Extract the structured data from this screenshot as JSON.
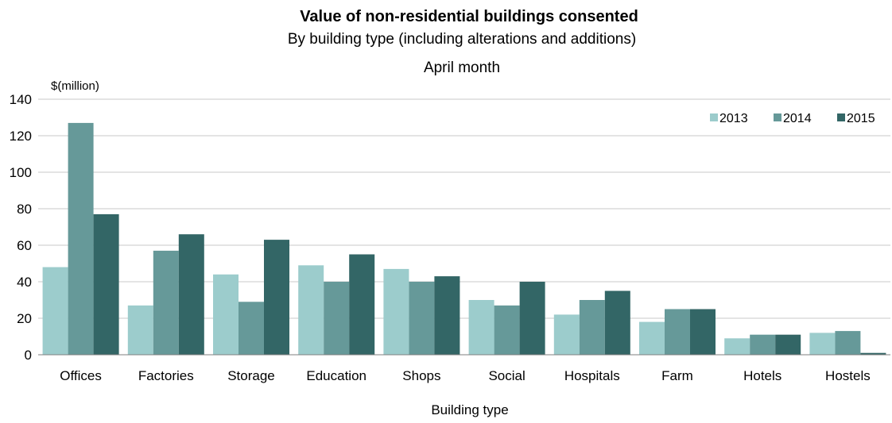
{
  "chart_data": {
    "type": "bar",
    "title": "Value of non-residential buildings consented",
    "subtitle": "By building type (including alterations and additions)",
    "subtitle2": "April month",
    "ylabel": "$(million)",
    "xlabel": "Building type",
    "ylim": [
      0,
      140
    ],
    "yticks": [
      0,
      20,
      40,
      60,
      80,
      100,
      120,
      140
    ],
    "grid": true,
    "legend_position": "top-right",
    "categories": [
      "Offices",
      "Factories",
      "Storage",
      "Education",
      "Shops",
      "Social",
      "Hospitals",
      "Farm",
      "Hotels",
      "Hostels"
    ],
    "series": [
      {
        "name": "2013",
        "color": "#9ccccc",
        "values": [
          48,
          27,
          44,
          49,
          47,
          30,
          22,
          18,
          9,
          12
        ]
      },
      {
        "name": "2014",
        "color": "#669999",
        "values": [
          127,
          57,
          29,
          40,
          40,
          27,
          30,
          25,
          11,
          13
        ]
      },
      {
        "name": "2015",
        "color": "#336666",
        "values": [
          77,
          66,
          63,
          55,
          43,
          40,
          35,
          25,
          11,
          1
        ]
      }
    ]
  }
}
